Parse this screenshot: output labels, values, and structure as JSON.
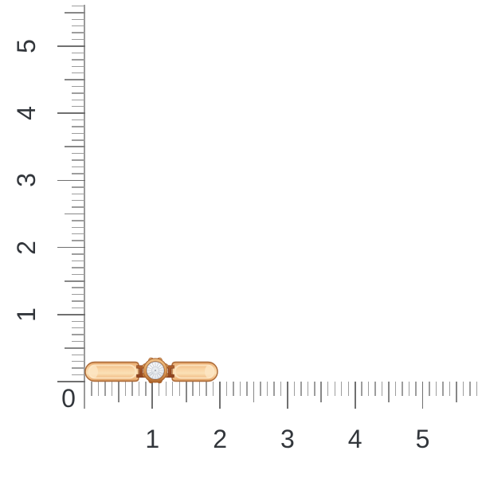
{
  "scene": {
    "background_color": "#ffffff"
  },
  "rulers": {
    "origin_label": "0",
    "tick_step_cm": 0.1,
    "vertical": {
      "labels": [
        "1",
        "2",
        "3",
        "4",
        "5"
      ],
      "max_cm": 5.6
    },
    "horizontal": {
      "labels": [
        "1",
        "2",
        "3",
        "4",
        "5"
      ],
      "max_cm": 5.8
    },
    "colors": {
      "minor_tick": "#9d9d9d",
      "mid_tick": "#878787",
      "major_tick": "#707070",
      "edge_line": "#9a9a9a",
      "number": "#32363b"
    }
  },
  "ring": {
    "alt": "rose-gold ring with round diamond, side view, about 2 cm wide",
    "width_cm": 2,
    "colors": {
      "band_edge": "#c9control",
      "band_outline": "#ad6b38",
      "band_deep": "#c98a52",
      "band_mid": "#efb67c",
      "band_light": "#f8d2a2",
      "band_highlight": "#fbe0b6",
      "band_bevel": "#fde7c6",
      "connector_light": "#b5652f",
      "connector_dark": "#8a3f1c",
      "bezel_light": "#f2c78f",
      "bezel_mid": "#dd9c59",
      "bezel_dark": "#aa6128",
      "bezel_outline": "#a45c26",
      "gem_seat": "#8a4a20",
      "diamond": "#edeff2",
      "diamond_edge": "#d5dae0",
      "diamond_facet": "#b6bcc6",
      "diamond_table": "#e9ecef"
    }
  }
}
